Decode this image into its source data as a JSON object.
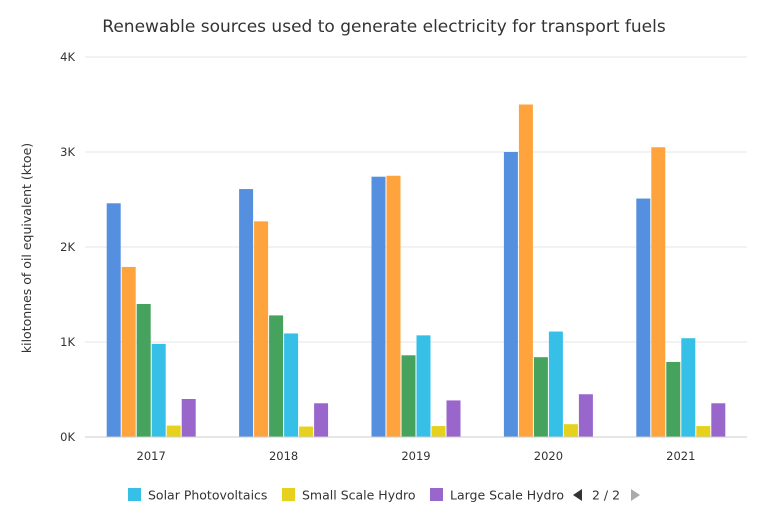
{
  "chart_data": {
    "type": "bar",
    "title": "Renewable sources used to generate electricity for transport fuels",
    "xlabel": "",
    "ylabel": "kilotonnes of oil equivalent (ktoe)",
    "ylim": [
      0,
      4000
    ],
    "yticks": [
      {
        "value": 0,
        "label": "0K"
      },
      {
        "value": 1000,
        "label": "1K"
      },
      {
        "value": 2000,
        "label": "2K"
      },
      {
        "value": 3000,
        "label": "3K"
      },
      {
        "value": 4000,
        "label": "4K"
      }
    ],
    "grid": true,
    "legend_position": "bottom",
    "categories": [
      "2017",
      "2018",
      "2019",
      "2020",
      "2021"
    ],
    "series": [
      {
        "name": "",
        "color": "#5590e0",
        "values": [
          2460,
          2610,
          2740,
          3000,
          2510
        ]
      },
      {
        "name": "",
        "color": "#ffa33c",
        "values": [
          1790,
          2270,
          2750,
          3500,
          3050
        ]
      },
      {
        "name": "",
        "color": "#46a35e",
        "values": [
          1400,
          1280,
          860,
          840,
          790
        ]
      },
      {
        "name": "Solar Photovoltaics",
        "color": "#36c0e8",
        "values": [
          980,
          1090,
          1070,
          1110,
          1040
        ]
      },
      {
        "name": "Small Scale Hydro",
        "color": "#e6d21c",
        "values": [
          120,
          110,
          115,
          135,
          115
        ]
      },
      {
        "name": "Large Scale Hydro",
        "color": "#9966cc",
        "values": [
          400,
          355,
          385,
          450,
          355
        ]
      }
    ]
  },
  "legend": {
    "items": [
      {
        "label": "Solar Photovoltaics",
        "color": "#36c0e8"
      },
      {
        "label": "Small Scale Hydro",
        "color": "#e6d21c"
      },
      {
        "label": "Large Scale Hydro",
        "color": "#9966cc"
      }
    ],
    "pager_text": "2 / 2",
    "prev_icon": "triangle-left-icon",
    "next_icon": "triangle-right-icon",
    "prev_color": "#333333",
    "next_color": "#aaaaaa"
  }
}
